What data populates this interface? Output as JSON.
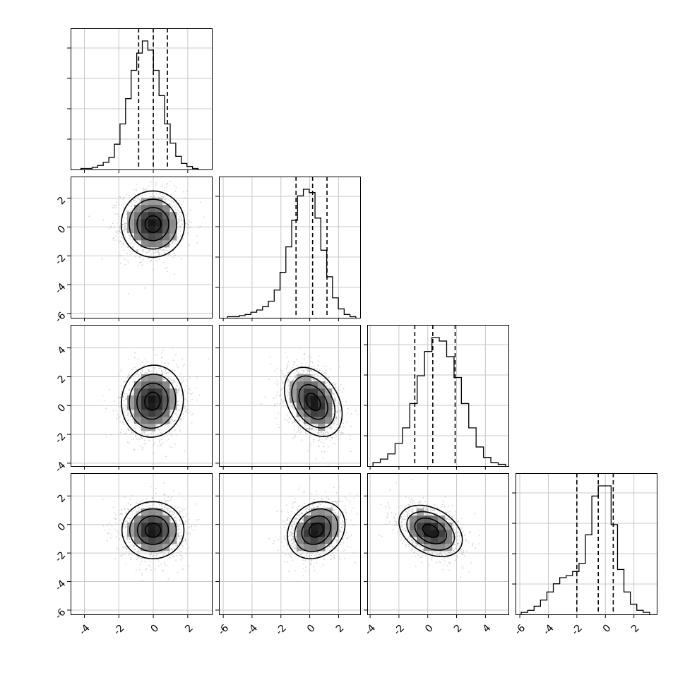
{
  "chart_data": {
    "type": "corner",
    "n_params": 4,
    "grid": true,
    "histogram_style": "step",
    "quantile_lines": "dashed",
    "axis_ticks": [
      [
        -4,
        -2,
        0,
        2
      ],
      [
        -6,
        -4,
        -2,
        0,
        2
      ],
      [
        -4,
        -2,
        0,
        2,
        4
      ],
      [
        -6,
        -4,
        -2,
        0,
        2
      ]
    ],
    "axis_ranges": [
      [
        -4.8,
        3.4
      ],
      [
        -6.3,
        3.5
      ],
      [
        -4.2,
        5.6
      ],
      [
        -6.3,
        3.6
      ]
    ],
    "histograms": [
      {
        "param": 0,
        "bins": [
          -4.2,
          2.6
        ],
        "counts": [
          1,
          1,
          2,
          4,
          7,
          12,
          25,
          45,
          70,
          98,
          115,
          127,
          118,
          98,
          73,
          45,
          26,
          13,
          6,
          3,
          1
        ],
        "quantiles": [
          -0.85,
          0.0,
          0.82
        ]
      },
      {
        "param": 1,
        "bins": [
          -5.7,
          3.2
        ],
        "counts": [
          1,
          1,
          2,
          3,
          5,
          7,
          10,
          15,
          25,
          41,
          64,
          88,
          110,
          116,
          113,
          90,
          61,
          37,
          18,
          8,
          3,
          1
        ],
        "quantiles": [
          -0.95,
          0.2,
          1.2
        ]
      },
      {
        "param": 2,
        "bins": [
          -3.8,
          5.4
        ],
        "counts": [
          2,
          4,
          7,
          13,
          22,
          36,
          52,
          66,
          74,
          72,
          63,
          51,
          36,
          22,
          11,
          5,
          2,
          1
        ],
        "quantiles": [
          -0.9,
          0.35,
          1.9
        ]
      },
      {
        "param": 3,
        "bins": [
          -5.9,
          3.1
        ],
        "counts": [
          1,
          2,
          4,
          7,
          11,
          15,
          18,
          19,
          21,
          25,
          39,
          58,
          63,
          63,
          44,
          22,
          11,
          5,
          2,
          1
        ],
        "quantiles": [
          -2.0,
          -0.5,
          0.55
        ]
      }
    ],
    "pairs": [
      {
        "x_param": 0,
        "y_param": 1,
        "mean": [
          -0.02,
          0.2
        ],
        "std": [
          0.92,
          1.15
        ],
        "corr": 0.0
      },
      {
        "x_param": 0,
        "y_param": 2,
        "mean": [
          -0.05,
          0.3
        ],
        "std": [
          0.9,
          1.25
        ],
        "corr": 0.05
      },
      {
        "x_param": 1,
        "y_param": 2,
        "mean": [
          0.25,
          0.25
        ],
        "std": [
          1.0,
          1.2
        ],
        "corr": -0.35
      },
      {
        "x_param": 0,
        "y_param": 3,
        "mean": [
          -0.02,
          -0.4
        ],
        "std": [
          0.9,
          1.0
        ],
        "corr": 0.0
      },
      {
        "x_param": 1,
        "y_param": 3,
        "mean": [
          0.45,
          -0.4
        ],
        "std": [
          1.0,
          1.0
        ],
        "corr": 0.2
      },
      {
        "x_param": 2,
        "y_param": 3,
        "mean": [
          0.2,
          -0.45
        ],
        "std": [
          1.1,
          0.9
        ],
        "corr": -0.35
      }
    ]
  }
}
